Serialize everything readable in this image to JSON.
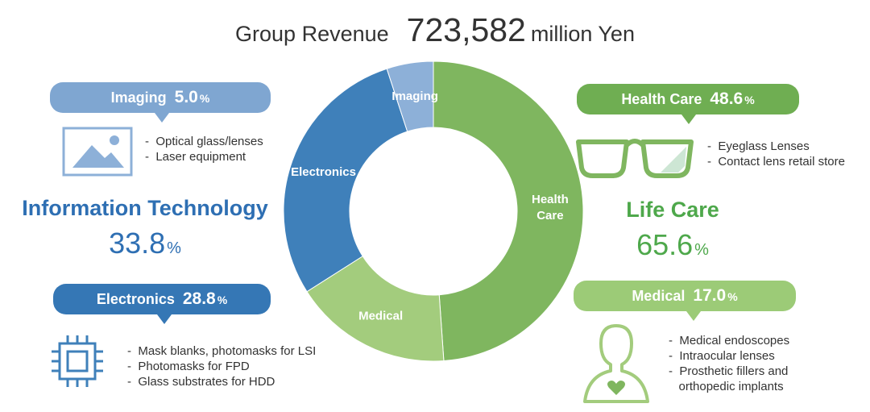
{
  "title": {
    "label": "Group Revenue",
    "value": "723,582",
    "unit": "million Yen"
  },
  "chart_data": {
    "type": "pie",
    "variant": "donut",
    "categories": [
      "Health Care",
      "Medical",
      "Electronics",
      "Imaging"
    ],
    "values": [
      48.6,
      17.0,
      28.8,
      5.0
    ],
    "labels": [
      "Health\nCare",
      "Medical",
      "Electronics",
      "Imaging"
    ],
    "colors": [
      "#7fb65f",
      "#a3cc7d",
      "#3f80ba",
      "#8db0d8"
    ],
    "unit": "%"
  },
  "segments": {
    "it": {
      "title": "Information Technology",
      "value": "33.8",
      "unit": "%",
      "color": "#2e6fb3"
    },
    "lc": {
      "title": "Life Care",
      "value": "65.6",
      "unit": "%",
      "color": "#4ea84b"
    }
  },
  "callouts": {
    "imaging": {
      "name": "Imaging",
      "value": "5.0",
      "unit": "%",
      "icon": "picture-icon",
      "items": [
        "Optical glass/lenses",
        "Laser equipment"
      ]
    },
    "electronics": {
      "name": "Electronics",
      "value": "28.8",
      "unit": "%",
      "icon": "chip-icon",
      "items": [
        "Mask blanks, photomasks for LSI",
        "Photomasks for FPD",
        "Glass substrates for HDD"
      ]
    },
    "healthcare": {
      "name": "Health Care",
      "value": "48.6",
      "unit": "%",
      "icon": "eyeglasses-icon",
      "items": [
        "Eyeglass Lenses",
        "Contact lens retail store"
      ]
    },
    "medical": {
      "name": "Medical",
      "value": "17.0",
      "unit": "%",
      "icon": "person-heart-icon",
      "items": [
        "Medical endoscopes",
        "Intraocular lenses",
        "Prosthetic fillers and",
        "orthopedic implants"
      ]
    }
  }
}
